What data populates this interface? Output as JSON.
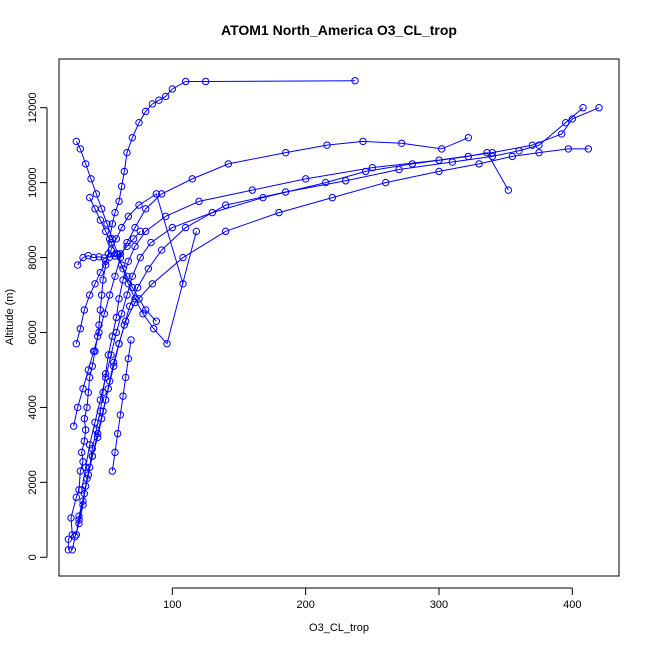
{
  "chart_data": {
    "type": "scatter",
    "title": "ATOM1 North_America O3_CL_trop",
    "xlabel": "O3_CL_trop",
    "ylabel": "Altitude (m)",
    "xlim": [
      15,
      435
    ],
    "ylim": [
      -500,
      13300
    ],
    "xticks": [
      100,
      200,
      300,
      400
    ],
    "yticks": [
      0,
      2000,
      4000,
      6000,
      8000,
      10000,
      12000
    ],
    "grid": false,
    "colors": {
      "series": "#0000ff",
      "axis": "#000000"
    },
    "style": "lines-with-open-circle-markers",
    "series": [
      {
        "x": [
          22,
          22,
          25,
          24,
          28,
          30,
          31,
          33,
          32,
          34,
          35,
          34,
          36,
          37,
          38,
          40,
          42,
          44,
          45,
          46,
          47,
          48,
          50,
          52,
          53,
          55,
          57,
          60,
          62,
          64,
          66,
          70,
          75,
          80,
          85,
          90,
          95,
          100,
          110,
          125,
          237
        ],
        "y": [
          200,
          480,
          600,
          1050,
          1600,
          1800,
          2300,
          2550,
          2800,
          3100,
          3400,
          3700,
          4000,
          4400,
          4800,
          5100,
          5500,
          5900,
          6200,
          6600,
          7000,
          7400,
          7800,
          8100,
          8500,
          8900,
          9200,
          9500,
          9900,
          10300,
          10800,
          11200,
          11600,
          11900,
          12100,
          12200,
          12300,
          12500,
          12700,
          12700,
          12720
        ]
      },
      {
        "x": [
          25,
          27,
          30,
          33,
          35,
          38,
          40,
          43,
          46,
          48,
          50,
          52,
          55,
          58,
          60,
          63,
          67,
          72,
          80,
          95,
          120,
          160,
          200,
          250,
          300,
          340,
          370,
          392,
          400,
          420
        ],
        "y": [
          200,
          550,
          900,
          1400,
          1900,
          2400,
          2900,
          3400,
          3900,
          4400,
          4900,
          5400,
          5900,
          6400,
          6900,
          7400,
          7900,
          8300,
          8700,
          9100,
          9500,
          9800,
          10100,
          10400,
          10600,
          10800,
          11000,
          11300,
          11700,
          12000
        ]
      },
      {
        "x": [
          28,
          30,
          34,
          37,
          40,
          44,
          47,
          50,
          53,
          56,
          60,
          64,
          68,
          74,
          82,
          92,
          110,
          140,
          185,
          230,
          270,
          310,
          340,
          360,
          375,
          395,
          408
        ],
        "y": [
          600,
          1100,
          1700,
          2200,
          2700,
          3200,
          3700,
          4200,
          4700,
          5200,
          5700,
          6200,
          6700,
          7200,
          7700,
          8200,
          8800,
          9400,
          9750,
          10050,
          10350,
          10550,
          10700,
          10850,
          11000,
          11600,
          12000
        ]
      },
      {
        "x": [
          30,
          33,
          36,
          40,
          44,
          48,
          52,
          56,
          60,
          65,
          72,
          85,
          108,
          140,
          180,
          220,
          260,
          300,
          330,
          355,
          375,
          397,
          412
        ],
        "y": [
          1000,
          1500,
          2100,
          2700,
          3300,
          3900,
          4500,
          5100,
          5700,
          6300,
          6800,
          7300,
          8000,
          8700,
          9200,
          9600,
          10000,
          10300,
          10500,
          10700,
          10800,
          10900,
          10900
        ]
      },
      {
        "x": [
          32,
          35,
          38,
          42,
          46,
          50,
          54,
          58,
          62,
          66,
          70,
          76,
          84,
          100,
          130,
          168,
          215,
          245,
          280,
          322,
          336,
          352
        ],
        "y": [
          1800,
          2400,
          3000,
          3600,
          4200,
          4800,
          5400,
          6000,
          6500,
          7000,
          7500,
          8000,
          8400,
          8800,
          9200,
          9600,
          10000,
          10300,
          10500,
          10700,
          10800,
          9800
        ]
      },
      {
        "x": [
          26,
          29,
          33,
          37,
          41,
          45,
          49,
          53,
          57,
          61,
          66,
          72,
          80,
          92,
          115,
          142,
          185,
          216,
          243,
          272,
          302,
          322
        ],
        "y": [
          3500,
          4000,
          4500,
          5000,
          5500,
          6000,
          6500,
          7000,
          7500,
          8000,
          8400,
          8800,
          9300,
          9700,
          10100,
          10500,
          10800,
          11000,
          11100,
          11050,
          10900,
          11200
        ]
      },
      {
        "x": [
          28,
          31,
          34,
          38,
          42,
          46,
          50,
          54,
          58,
          62,
          67,
          75,
          88,
          108
        ],
        "y": [
          5700,
          6100,
          6600,
          7000,
          7300,
          7600,
          7900,
          8200,
          8500,
          8800,
          9100,
          9400,
          9700,
          7300
        ]
      },
      {
        "x": [
          29,
          33,
          37,
          41,
          45,
          49,
          53,
          57,
          61,
          66,
          71,
          76
        ],
        "y": [
          7800,
          8000,
          8050,
          8000,
          8020,
          7990,
          8010,
          8040,
          8100,
          8300,
          8500,
          8700
        ]
      },
      {
        "x": [
          28,
          31,
          35,
          39,
          43,
          47,
          51,
          55,
          59,
          63,
          67,
          72,
          78,
          86,
          96,
          118
        ],
        "y": [
          11100,
          10900,
          10500,
          10100,
          9700,
          9300,
          8900,
          8500,
          8100,
          7700,
          7300,
          6900,
          6500,
          6100,
          5700,
          8700
        ]
      },
      {
        "x": [
          38,
          42,
          46,
          50,
          54,
          58,
          62,
          66,
          70,
          75,
          80,
          88
        ],
        "y": [
          9600,
          9300,
          9000,
          8700,
          8400,
          8100,
          7800,
          7500,
          7200,
          6900,
          6600,
          6300
        ]
      },
      {
        "x": [
          55,
          57,
          59,
          61,
          63,
          65,
          67,
          69
        ],
        "y": [
          2300,
          2800,
          3300,
          3800,
          4300,
          4800,
          5300,
          5800
        ]
      }
    ]
  }
}
